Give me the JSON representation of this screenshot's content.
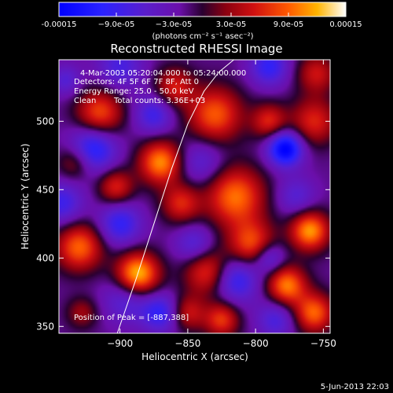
{
  "chart_data": {
    "type": "heatmap",
    "title": "Reconstructed RHESSI Image",
    "xlabel": "Heliocentric X (arcsec)",
    "ylabel": "Heliocentric Y (arcsec)",
    "xlim": [
      -945,
      -745
    ],
    "ylim": [
      345,
      545
    ],
    "xticks": [
      -900,
      -850,
      -800,
      -750
    ],
    "xtick_labels": [
      "−900",
      "−850",
      "−800",
      "−750"
    ],
    "yticks": [
      350,
      400,
      450,
      500
    ],
    "ytick_labels": [
      "350",
      "400",
      "450",
      "500"
    ],
    "colorbar": {
      "min": -0.00015,
      "max": 0.00015,
      "ticks": [
        -0.00015,
        -9e-05,
        -3e-05,
        3e-05,
        9e-05,
        0.00015
      ],
      "tick_labels": [
        "-0.00015",
        "−9.0e-05",
        "−3.0e-05",
        "3.0e-05",
        "9.0e-05",
        "0.00015"
      ],
      "unit_label": "(photons cm⁻² s⁻¹ asec⁻²)"
    },
    "annotations": {
      "time_range": "4-Mar-2003 05:20:04.000 to 05:24:00.000",
      "detectors": "Detectors: 4F 5F 6F 7F 8F, Att 0",
      "energy_range": "Energy Range: 25.0 - 50.0 keV",
      "clean": "Clean",
      "total_counts": "Total counts: 3.36E+03",
      "peak_position": "Position of Peak = [-887,388]"
    },
    "peak": [
      -887,
      388
    ],
    "blobs": [
      {
        "x": -887,
        "y": 388,
        "v": 0.00015,
        "s": 11
      },
      {
        "x": -930,
        "y": 408,
        "v": 0.00011,
        "s": 12
      },
      {
        "x": -915,
        "y": 506,
        "v": 0.0001,
        "s": 12
      },
      {
        "x": -870,
        "y": 470,
        "v": 0.000125,
        "s": 11
      },
      {
        "x": -903,
        "y": 452,
        "v": 8e-05,
        "s": 9
      },
      {
        "x": -835,
        "y": 390,
        "v": 9.5e-05,
        "s": 12
      },
      {
        "x": -855,
        "y": 440,
        "v": 8e-05,
        "s": 10
      },
      {
        "x": -830,
        "y": 505,
        "v": 0.000105,
        "s": 14
      },
      {
        "x": -815,
        "y": 445,
        "v": 0.000115,
        "s": 15
      },
      {
        "x": -803,
        "y": 410,
        "v": 0.0001,
        "s": 12
      },
      {
        "x": -777,
        "y": 380,
        "v": 0.00012,
        "s": 10
      },
      {
        "x": -760,
        "y": 420,
        "v": 0.00013,
        "s": 10
      },
      {
        "x": -757,
        "y": 360,
        "v": 0.00011,
        "s": 10
      },
      {
        "x": -757,
        "y": 500,
        "v": 8e-05,
        "s": 12
      },
      {
        "x": -755,
        "y": 535,
        "v": 7e-05,
        "s": 10
      },
      {
        "x": -790,
        "y": 500,
        "v": 8e-05,
        "s": 9
      },
      {
        "x": -850,
        "y": 360,
        "v": 7e-05,
        "s": 9
      },
      {
        "x": -825,
        "y": 355,
        "v": 9e-05,
        "s": 9
      },
      {
        "x": -933,
        "y": 470,
        "v": 6e-05,
        "s": 9
      },
      {
        "x": -928,
        "y": 360,
        "v": 5e-05,
        "s": 8
      },
      {
        "x": -860,
        "y": 525,
        "v": 7.5e-05,
        "s": 10
      },
      {
        "x": -943,
        "y": 440,
        "v": -7e-05,
        "s": 11
      },
      {
        "x": -920,
        "y": 480,
        "v": -0.0001,
        "s": 12
      },
      {
        "x": -900,
        "y": 425,
        "v": -8e-05,
        "s": 11
      },
      {
        "x": -895,
        "y": 370,
        "v": -6e-05,
        "s": 12
      },
      {
        "x": -875,
        "y": 505,
        "v": -7e-05,
        "s": 10
      },
      {
        "x": -870,
        "y": 360,
        "v": -8e-05,
        "s": 10
      },
      {
        "x": -845,
        "y": 410,
        "v": -6e-05,
        "s": 10
      },
      {
        "x": -815,
        "y": 385,
        "v": -9e-05,
        "s": 12
      },
      {
        "x": -790,
        "y": 400,
        "v": -7e-05,
        "s": 8
      },
      {
        "x": -778,
        "y": 480,
        "v": -0.00014,
        "s": 9
      },
      {
        "x": -790,
        "y": 540,
        "v": -8e-05,
        "s": 10
      },
      {
        "x": -770,
        "y": 445,
        "v": -5e-05,
        "s": 10
      },
      {
        "x": -785,
        "y": 355,
        "v": -6e-05,
        "s": 10
      },
      {
        "x": -900,
        "y": 540,
        "v": -6e-05,
        "s": 12
      },
      {
        "x": -840,
        "y": 470,
        "v": -5e-05,
        "s": 12
      },
      {
        "x": -940,
        "y": 530,
        "v": -5e-05,
        "s": 8
      }
    ],
    "limb": {
      "x": [
        -902,
        -888,
        -875,
        -862,
        -850,
        -838,
        -827,
        -816,
        -807
      ],
      "y": [
        345,
        385,
        425,
        465,
        498,
        522,
        536,
        545,
        552
      ]
    }
  },
  "footer": {
    "date": "5-Jun-2013 22:03"
  }
}
